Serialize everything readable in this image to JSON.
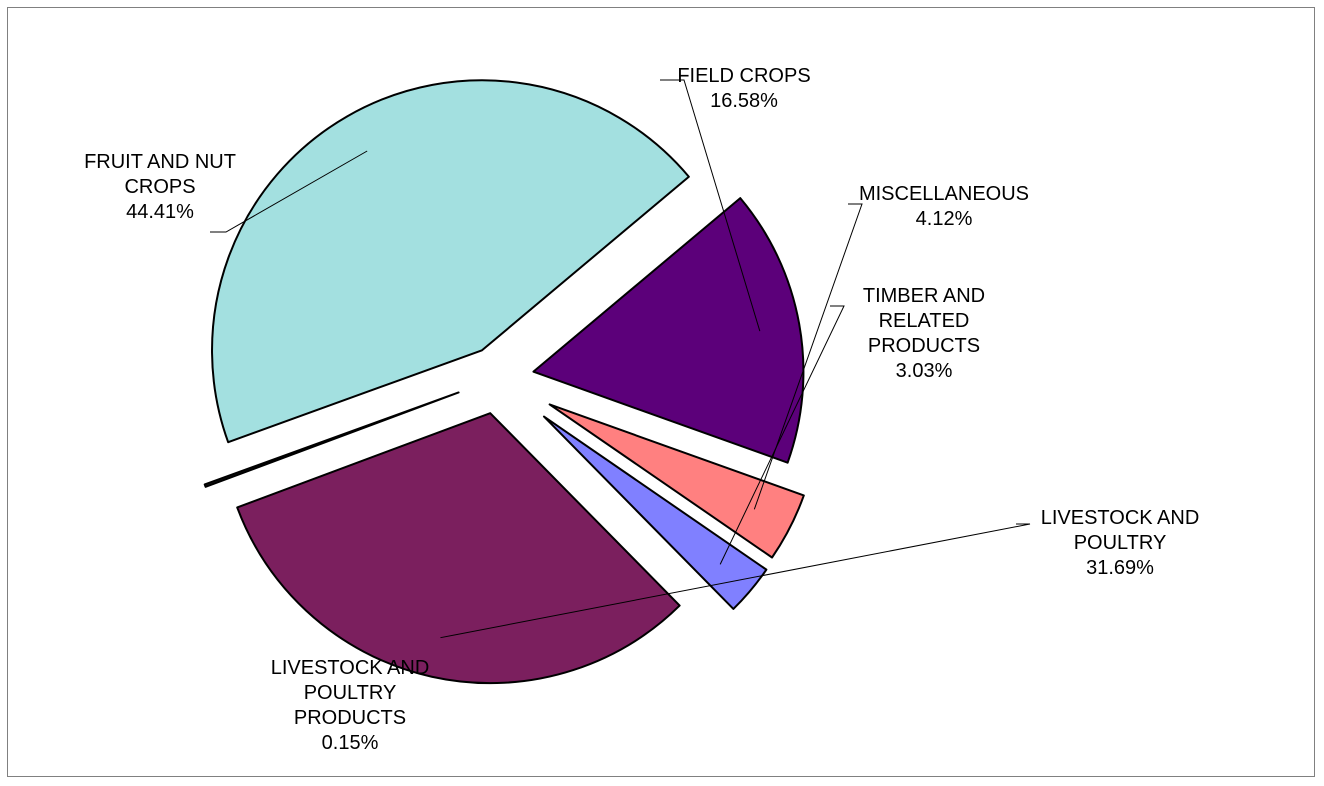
{
  "chart_data": {
    "type": "pie",
    "title": "",
    "slices": [
      {
        "label": "FIELD CROPS",
        "value": 16.58,
        "value_text": "16.58%",
        "color": "#5C007A"
      },
      {
        "label": "MISCELLANEOUS",
        "value": 4.12,
        "value_text": "4.12%",
        "color": "#FF8080"
      },
      {
        "label": "TIMBER AND RELATED PRODUCTS",
        "value": 3.03,
        "value_text": "3.03%",
        "color": "#8080FF"
      },
      {
        "label": "LIVESTOCK AND POULTRY",
        "value": 31.69,
        "value_text": "31.69%",
        "color": "#7B1F5E"
      },
      {
        "label": "LIVESTOCK AND POULTRY PRODUCTS",
        "value": 0.15,
        "value_text": "0.15%",
        "color": "#1A1A1A"
      },
      {
        "label": "FRUIT AND NUT CROPS",
        "value": 44.41,
        "value_text": "44.41%",
        "color": "#A3E0E0"
      }
    ],
    "exploded": true,
    "legend": "none",
    "data_labels": "outside with leader lines"
  }
}
